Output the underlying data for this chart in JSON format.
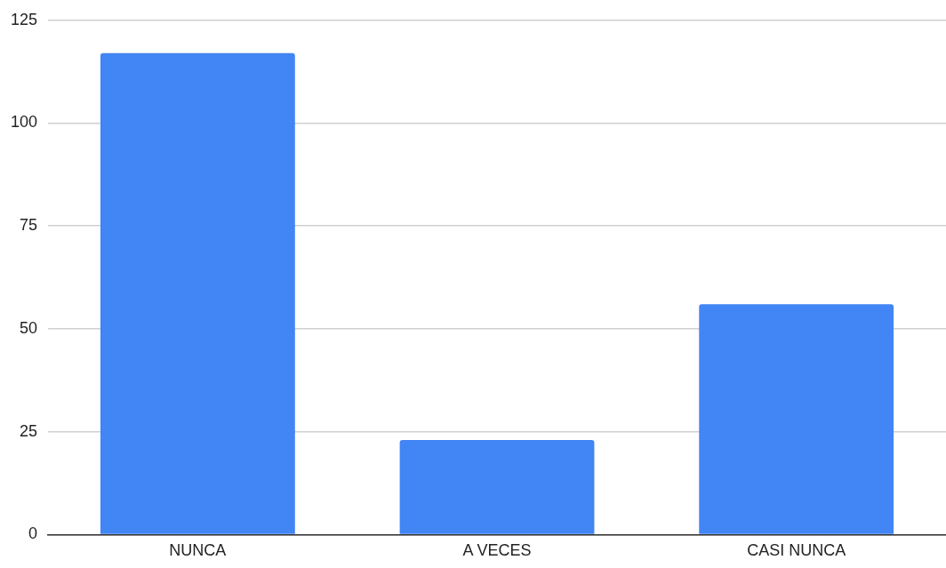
{
  "chart_data": {
    "type": "bar",
    "categories": [
      "NUNCA",
      "A VECES",
      "CASI NUNCA"
    ],
    "values": [
      117,
      23,
      56
    ],
    "color": "#4285f4",
    "ylim": [
      0,
      125
    ],
    "yticks": [
      0,
      25,
      50,
      75,
      100,
      125
    ],
    "grid": "y",
    "legend": false
  }
}
